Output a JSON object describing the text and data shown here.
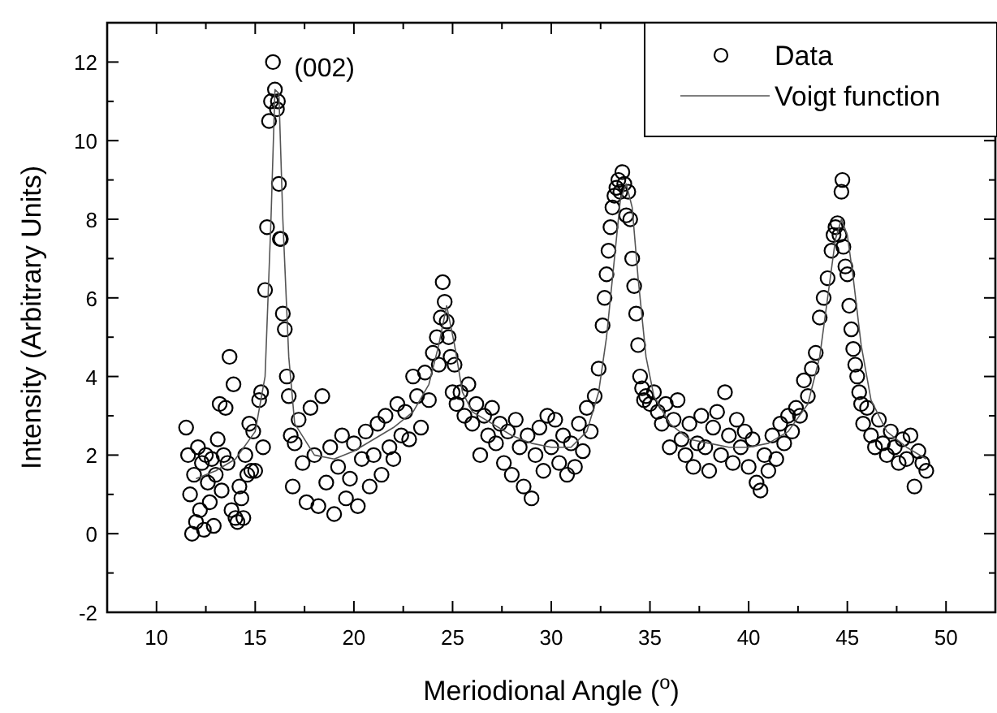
{
  "chart_data": {
    "type": "scatter",
    "xlabel": "Meriodional Angle ($^{o}$)",
    "ylabel": "Intensity (Arbitrary Units)",
    "xlim": [
      7.5,
      52.5
    ],
    "ylim": [
      -2,
      13
    ],
    "xticks": [
      10,
      {
        "value": 12.5,
        "label": null
      },
      15,
      {
        "value": 17.5,
        "label": null
      },
      20,
      {
        "value": 22.5,
        "label": null
      },
      25,
      {
        "value": 27.5,
        "label": null
      },
      30,
      {
        "value": 32.5,
        "label": null
      },
      35,
      {
        "value": 37.5,
        "label": null
      },
      40,
      {
        "value": 42.5,
        "label": null
      },
      45,
      {
        "value": 47.5,
        "label": null
      },
      50
    ],
    "yticks": [
      -2,
      {
        "value": -1,
        "label": null
      },
      0,
      {
        "value": 1,
        "label": null
      },
      2,
      {
        "value": 3,
        "label": null
      },
      4,
      {
        "value": 5,
        "label": null
      },
      6,
      {
        "value": 7,
        "label": null
      },
      8,
      {
        "value": 9,
        "label": null
      },
      10,
      {
        "value": 11,
        "label": null
      },
      12
    ],
    "legend": "top right",
    "grid": false,
    "annotations": [
      {
        "text": "(002)",
        "x": 15.9,
        "y": 12
      }
    ],
    "series": [
      {
        "name": "Data",
        "marker": "circle",
        "color": "#000000",
        "x": [
          11.5,
          11.6,
          11.7,
          11.8,
          11.9,
          12.0,
          12.1,
          12.2,
          12.3,
          12.4,
          12.5,
          12.6,
          12.7,
          12.8,
          12.9,
          13.0,
          13.1,
          13.2,
          13.3,
          13.4,
          13.5,
          13.6,
          13.7,
          13.8,
          13.9,
          14.0,
          14.1,
          14.2,
          14.3,
          14.4,
          14.5,
          14.6,
          14.7,
          14.8,
          14.9,
          15.0,
          15.2,
          15.3,
          15.4,
          15.5,
          15.6,
          15.7,
          15.8,
          15.9,
          16.0,
          16.1,
          16.15,
          16.2,
          16.25,
          16.3,
          16.4,
          16.5,
          16.6,
          16.7,
          16.8,
          16.9,
          17.0,
          17.2,
          17.4,
          17.6,
          17.8,
          18.0,
          18.2,
          18.4,
          18.6,
          18.8,
          19.0,
          19.2,
          19.4,
          19.6,
          19.8,
          20.0,
          20.2,
          20.4,
          20.6,
          20.8,
          21.0,
          21.2,
          21.4,
          21.6,
          21.8,
          22.0,
          22.2,
          22.4,
          22.6,
          22.8,
          23.0,
          23.2,
          23.4,
          23.6,
          23.8,
          24.0,
          24.2,
          24.3,
          24.4,
          24.5,
          24.6,
          24.7,
          24.8,
          24.9,
          25.0,
          25.1,
          25.2,
          25.4,
          25.6,
          25.8,
          26.0,
          26.2,
          26.4,
          26.6,
          26.8,
          27.0,
          27.2,
          27.4,
          27.6,
          27.8,
          28.0,
          28.2,
          28.4,
          28.6,
          28.8,
          29.0,
          29.2,
          29.4,
          29.6,
          29.8,
          30.0,
          30.2,
          30.4,
          30.6,
          30.8,
          31.0,
          31.2,
          31.4,
          31.6,
          31.8,
          32.0,
          32.2,
          32.4,
          32.6,
          32.7,
          32.8,
          32.9,
          33.0,
          33.1,
          33.2,
          33.3,
          33.4,
          33.5,
          33.6,
          33.7,
          33.8,
          33.9,
          34.0,
          34.1,
          34.2,
          34.3,
          34.4,
          34.5,
          34.6,
          34.7,
          34.8,
          35.0,
          35.2,
          35.4,
          35.6,
          35.8,
          36.0,
          36.2,
          36.4,
          36.6,
          36.8,
          37.0,
          37.2,
          37.4,
          37.6,
          37.8,
          38.0,
          38.2,
          38.4,
          38.6,
          38.8,
          39.0,
          39.2,
          39.4,
          39.6,
          39.8,
          40.0,
          40.2,
          40.4,
          40.6,
          40.8,
          41.0,
          41.2,
          41.4,
          41.6,
          41.8,
          42.0,
          42.2,
          42.4,
          42.6,
          42.8,
          43.0,
          43.2,
          43.4,
          43.6,
          43.8,
          44.0,
          44.2,
          44.3,
          44.4,
          44.5,
          44.6,
          44.7,
          44.75,
          44.8,
          44.9,
          45.0,
          45.1,
          45.2,
          45.3,
          45.4,
          45.5,
          45.6,
          45.7,
          45.8,
          46.0,
          46.2,
          46.4,
          46.6,
          46.8,
          47.0,
          47.2,
          47.4,
          47.6,
          47.8,
          48.0,
          48.2,
          48.4,
          48.6,
          48.8,
          49.0
        ],
        "values": [
          2.7,
          2.0,
          1.0,
          0.0,
          1.5,
          0.3,
          2.2,
          0.6,
          1.8,
          0.1,
          2.0,
          1.3,
          0.8,
          1.9,
          0.2,
          1.5,
          2.4,
          3.3,
          1.1,
          2.0,
          3.2,
          1.8,
          4.5,
          0.6,
          3.8,
          0.4,
          0.3,
          1.2,
          0.9,
          0.4,
          2.0,
          1.5,
          2.8,
          1.6,
          2.6,
          1.6,
          3.4,
          3.6,
          2.2,
          6.2,
          7.8,
          10.5,
          11.0,
          12.0,
          11.3,
          10.8,
          11.0,
          8.9,
          7.5,
          7.5,
          5.6,
          5.2,
          4.0,
          3.5,
          2.5,
          1.2,
          2.3,
          2.9,
          1.8,
          0.8,
          3.2,
          2.0,
          0.7,
          3.5,
          1.3,
          2.2,
          0.5,
          1.7,
          2.5,
          0.9,
          1.4,
          2.3,
          0.7,
          1.9,
          2.6,
          1.2,
          2.0,
          2.8,
          1.5,
          3.0,
          2.2,
          1.9,
          3.3,
          2.5,
          3.1,
          2.4,
          4.0,
          3.5,
          2.7,
          4.1,
          3.4,
          4.6,
          5.0,
          4.3,
          5.5,
          6.4,
          5.9,
          5.4,
          5.0,
          4.5,
          3.6,
          4.3,
          3.3,
          3.6,
          3.0,
          3.8,
          2.8,
          3.3,
          2.0,
          3.0,
          2.5,
          3.2,
          2.3,
          2.8,
          1.8,
          2.6,
          1.5,
          2.9,
          2.2,
          1.2,
          2.5,
          0.9,
          2.0,
          2.7,
          1.6,
          3.0,
          2.2,
          2.9,
          1.8,
          2.5,
          1.5,
          2.3,
          1.7,
          2.8,
          2.1,
          3.2,
          2.6,
          3.5,
          4.2,
          5.3,
          6.0,
          6.6,
          7.2,
          7.8,
          8.3,
          8.6,
          8.8,
          9.0,
          8.7,
          9.2,
          8.9,
          8.1,
          8.7,
          8.0,
          7.0,
          6.3,
          5.6,
          4.8,
          4.0,
          3.7,
          3.4,
          3.5,
          3.3,
          3.6,
          3.1,
          2.8,
          3.3,
          2.2,
          2.9,
          3.4,
          2.4,
          2.0,
          2.8,
          1.7,
          2.3,
          3.0,
          2.2,
          1.6,
          2.7,
          3.1,
          2.0,
          3.6,
          2.5,
          1.8,
          2.9,
          2.2,
          2.6,
          1.7,
          2.4,
          1.3,
          1.1,
          2.0,
          1.6,
          2.5,
          1.9,
          2.8,
          2.3,
          3.0,
          2.6,
          3.2,
          3.0,
          3.9,
          3.5,
          4.2,
          4.6,
          5.5,
          6.0,
          6.5,
          7.2,
          7.6,
          7.8,
          7.9,
          7.6,
          8.7,
          9.0,
          7.3,
          6.8,
          6.6,
          5.8,
          5.2,
          4.7,
          4.3,
          4.0,
          3.6,
          3.3,
          2.8,
          3.2,
          2.5,
          2.2,
          2.9,
          2.3,
          2.0,
          2.6,
          2.2,
          1.8,
          2.4,
          1.9,
          2.5,
          1.2,
          2.1,
          1.8,
          1.6
        ]
      },
      {
        "name": "Voigt function",
        "type": "line",
        "marker": "none",
        "line_style": "solid",
        "color": "#555555",
        "x": [
          12,
          13,
          14,
          15,
          15.5,
          15.8,
          16,
          16.2,
          16.4,
          16.7,
          17,
          18,
          19,
          20,
          21,
          22,
          23,
          23.8,
          24.3,
          24.7,
          25.1,
          25.5,
          26,
          27,
          28,
          29,
          30,
          31,
          31.8,
          32.4,
          32.8,
          33.2,
          33.5,
          33.8,
          34.1,
          34.4,
          34.8,
          35.2,
          36,
          37,
          38,
          39,
          40,
          41,
          42,
          43,
          43.6,
          44,
          44.4,
          44.7,
          45,
          45.3,
          45.7,
          46.2,
          47,
          48,
          49
        ],
        "values": [
          1.4,
          1.6,
          1.9,
          2.6,
          4.0,
          8.0,
          11.3,
          11.2,
          8.0,
          4.5,
          2.8,
          2.0,
          1.9,
          2.1,
          2.4,
          2.7,
          3.1,
          3.8,
          4.8,
          5.8,
          4.8,
          3.6,
          3.1,
          2.8,
          2.5,
          2.3,
          2.2,
          2.2,
          2.6,
          3.6,
          5.0,
          7.0,
          8.5,
          8.9,
          8.3,
          6.5,
          4.5,
          3.5,
          2.8,
          2.4,
          2.3,
          2.2,
          2.2,
          2.3,
          2.6,
          3.3,
          4.5,
          6.0,
          7.5,
          8.0,
          7.6,
          6.5,
          4.8,
          3.4,
          2.6,
          2.2,
          1.9
        ]
      }
    ]
  }
}
